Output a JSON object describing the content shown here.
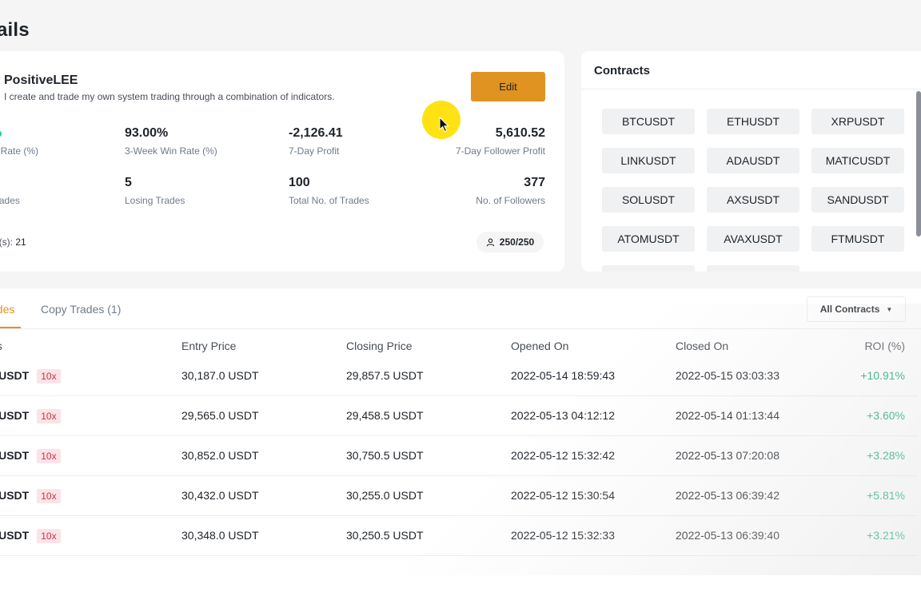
{
  "page": {
    "title": "ails"
  },
  "profile": {
    "username": "PositiveLEE",
    "bio": "I create and trade my own system trading through a combination of indicators.",
    "edit_label": "Edit",
    "stats": [
      {
        "value": "%",
        "label": "in Rate (%)"
      },
      {
        "value": "93.00%",
        "label": "3-Week Win Rate (%)"
      },
      {
        "value": "-2,126.41",
        "label": "7-Day Profit"
      },
      {
        "value": "5,610.52",
        "label": "7-Day Follower Profit"
      },
      {
        "value": "",
        "label": "Trades"
      },
      {
        "value": "5",
        "label": "Losing Trades"
      },
      {
        "value": "100",
        "label": "Total No. of Trades"
      },
      {
        "value": "377",
        "label": "No. of Followers"
      }
    ],
    "days_label": "ay(s):",
    "days_value": "21",
    "followers_badge": "250/250"
  },
  "contracts": {
    "title": "Contracts",
    "items": [
      "BTCUSDT",
      "ETHUSDT",
      "XRPUSDT",
      "LINKUSDT",
      "ADAUSDT",
      "MATICUSDT",
      "SOLUSDT",
      "AXSUSDT",
      "SANDUSDT",
      "ATOMUSDT",
      "AVAXUSDT",
      "FTMUSDT"
    ]
  },
  "trades": {
    "tabs": [
      {
        "label": "ades"
      },
      {
        "label": "Copy Trades (1)"
      }
    ],
    "filter_label": "All Contracts",
    "columns": [
      "ns",
      "Entry Price",
      "Closing Price",
      "Opened On",
      "Closed On",
      "ROI (%)"
    ],
    "rows": [
      {
        "symbol": "CUSDT",
        "leverage": "10x",
        "entry": "30,187.0 USDT",
        "closing": "29,857.5 USDT",
        "opened": "2022-05-14 18:59:43",
        "closed": "2022-05-15 03:03:33",
        "roi": "+10.91%"
      },
      {
        "symbol": "CUSDT",
        "leverage": "10x",
        "entry": "29,565.0 USDT",
        "closing": "29,458.5 USDT",
        "opened": "2022-05-13 04:12:12",
        "closed": "2022-05-14 01:13:44",
        "roi": "+3.60%"
      },
      {
        "symbol": "CUSDT",
        "leverage": "10x",
        "entry": "30,852.0 USDT",
        "closing": "30,750.5 USDT",
        "opened": "2022-05-12 15:32:42",
        "closed": "2022-05-13 07:20:08",
        "roi": "+3.28%"
      },
      {
        "symbol": "CUSDT",
        "leverage": "10x",
        "entry": "30,432.0 USDT",
        "closing": "30,255.0 USDT",
        "opened": "2022-05-12 15:30:54",
        "closed": "2022-05-13 06:39:42",
        "roi": "+5.81%"
      },
      {
        "symbol": "CUSDT",
        "leverage": "10x",
        "entry": "30,348.0 USDT",
        "closing": "30,250.5 USDT",
        "opened": "2022-05-12 15:32:33",
        "closed": "2022-05-13 06:39:40",
        "roi": "+3.21%"
      }
    ]
  },
  "colors": {
    "accent": "#e09321",
    "positive": "#03a66d",
    "leverage_bg": "#fbe3e6",
    "leverage_text": "#cf304a"
  },
  "icons": {
    "follower": "person-icon",
    "cursor": "mouse-pointer-icon"
  }
}
